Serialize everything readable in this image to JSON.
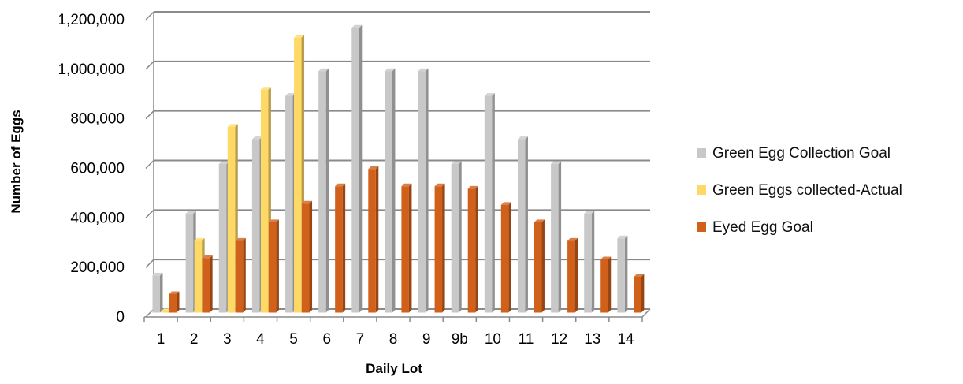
{
  "chart_data": {
    "type": "bar",
    "style": "3d-clustered-column",
    "xlabel": "Daily Lot",
    "ylabel": "Number of Eggs",
    "ylim": [
      0,
      1200000
    ],
    "yticks": [
      0,
      200000,
      400000,
      600000,
      800000,
      1000000,
      1200000
    ],
    "ytick_labels": [
      "0",
      "200,000",
      "400,000",
      "600,000",
      "800,000",
      "1,000,000",
      "1,200,000"
    ],
    "grid": true,
    "legend_position": "right",
    "categories": [
      "1",
      "2",
      "3",
      "4",
      "5",
      "6",
      "7",
      "8",
      "9",
      "9b",
      "10",
      "11",
      "12",
      "13",
      "14"
    ],
    "series": [
      {
        "name": "Green Egg Collection Goal",
        "color": "#c8c8c8",
        "values": [
          150000,
          400000,
          600000,
          700000,
          875000,
          975000,
          1150000,
          975000,
          975000,
          600000,
          875000,
          700000,
          600000,
          400000,
          300000
        ]
      },
      {
        "name": "Green Eggs collected-Actual",
        "color": "#ffd966",
        "values": [
          5000,
          290000,
          750000,
          900000,
          1110000,
          null,
          null,
          null,
          null,
          null,
          null,
          null,
          null,
          null,
          null
        ]
      },
      {
        "name": "Eyed Egg Goal",
        "color": "#d0601a",
        "values": [
          75000,
          220000,
          290000,
          365000,
          440000,
          510000,
          580000,
          510000,
          510000,
          500000,
          435000,
          365000,
          290000,
          215000,
          145000
        ]
      }
    ]
  }
}
